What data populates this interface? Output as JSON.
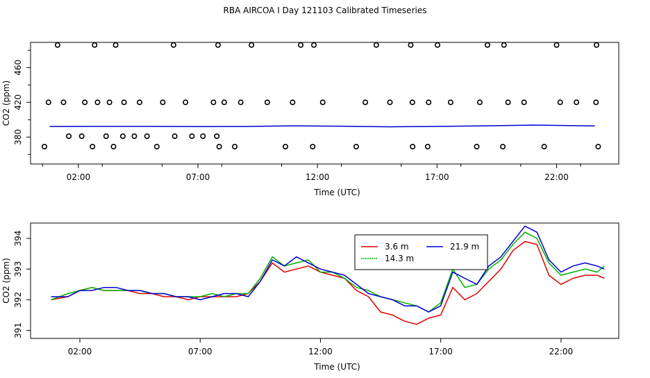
{
  "title": "RBA AIRCOA I  Day 121103  Calibrated Timeseries",
  "colors": {
    "red": "#e00000",
    "green": "#00b000",
    "blue": "#0000d0",
    "axis": "#000000"
  },
  "chart_data": [
    {
      "type": "scatter",
      "xlabel": "Time (UTC)",
      "ylabel": "CO2 (ppm)",
      "xlim": [
        0.0,
        24.6
      ],
      "ylim": [
        349,
        489
      ],
      "xticks": [
        "02:00",
        "07:00",
        "12:00",
        "17:00",
        "22:00"
      ],
      "xtick_values": [
        2,
        7,
        12,
        17,
        22
      ],
      "yticks": [
        "380",
        "420",
        "460"
      ],
      "ytick_values": [
        380,
        420,
        460
      ],
      "series": [
        {
          "marker": "open-circle",
          "color": "#000000",
          "x": [
            1.6,
            2.14,
            3.16,
            3.86,
            4.34,
            4.87,
            6.03,
            6.75,
            7.21,
            7.79,
            0.75,
            1.38,
            2.27,
            2.8,
            3.3,
            3.91,
            4.56,
            5.53,
            6.48,
            7.65,
            8.1,
            8.79,
            9.9,
            10.96,
            12.22,
            14.0,
            15.03,
            15.97,
            16.65,
            17.57,
            18.79,
            19.97,
            20.64,
            22.15,
            22.83,
            23.65,
            1.13,
            2.68,
            3.56,
            5.98,
            7.84,
            9.24,
            11.3,
            11.85,
            14.46,
            15.9,
            17.02,
            19.11,
            19.8,
            22.0,
            23.67,
            0.58,
            2.59,
            3.47,
            5.28,
            7.89,
            8.54,
            10.66,
            11.8,
            13.62,
            15.98,
            16.61,
            18.66,
            19.75,
            21.48,
            23.74
          ],
          "y": [
            381,
            381,
            381,
            381,
            381,
            381,
            381,
            381,
            381,
            381,
            420,
            420,
            420,
            420,
            420,
            420,
            420,
            420,
            420,
            420,
            420,
            420,
            420,
            420,
            420,
            420,
            420,
            420,
            420,
            420,
            420,
            420,
            420,
            420,
            420,
            420,
            486,
            486,
            486,
            486,
            486,
            486,
            486,
            486,
            486,
            486,
            486,
            486,
            486,
            486,
            486,
            369,
            369,
            369,
            369,
            369,
            369,
            369,
            369,
            369,
            369,
            369,
            369,
            369,
            369,
            369
          ]
        },
        {
          "name": "",
          "marker": "line",
          "color": "#0000d0",
          "x": [
            0.8,
            3,
            5,
            7,
            9,
            11,
            13,
            15,
            17,
            19,
            21,
            23.6
          ],
          "y": [
            392.2,
            392.3,
            392.3,
            392.1,
            392.2,
            392.9,
            392.5,
            391.8,
            392.3,
            392.9,
            393.8,
            392.8
          ]
        }
      ]
    },
    {
      "type": "line",
      "xlabel": "Time (UTC)",
      "ylabel": "CO2 (ppm)",
      "xlim": [
        -0.05,
        24.4
      ],
      "ylim": [
        390.74,
        394.5
      ],
      "xticks": [
        "02:00",
        "07:00",
        "12:00",
        "17:00",
        "22:00"
      ],
      "xtick_values": [
        2,
        7,
        12,
        17,
        22
      ],
      "yticks": [
        "391",
        "392",
        "393",
        "394"
      ],
      "ytick_values": [
        391,
        392,
        393,
        394
      ],
      "legend": {
        "placement": "top-center",
        "entries": [
          "3.6 m",
          "21.9 m",
          "14.3 m"
        ]
      },
      "x": [
        0.8,
        1.5,
        2.0,
        2.5,
        3.0,
        3.5,
        4.0,
        4.5,
        5.0,
        5.5,
        6.0,
        6.5,
        7.0,
        7.5,
        8.0,
        8.5,
        9.0,
        9.5,
        10.0,
        10.5,
        11.0,
        11.5,
        12.0,
        12.5,
        13.0,
        13.5,
        14.0,
        14.5,
        15.0,
        15.5,
        16.0,
        16.5,
        17.0,
        17.5,
        18.0,
        18.5,
        19.0,
        19.5,
        20.0,
        20.5,
        21.0,
        21.5,
        22.0,
        22.5,
        23.0,
        23.5,
        23.8
      ],
      "series": [
        {
          "name": "3.6 m",
          "color": "#e00000",
          "y": [
            392.0,
            392.1,
            392.3,
            392.4,
            392.3,
            392.3,
            392.3,
            392.2,
            392.2,
            392.1,
            392.1,
            392.0,
            392.1,
            392.1,
            392.1,
            392.1,
            392.2,
            392.6,
            393.2,
            392.9,
            393.0,
            393.1,
            392.9,
            392.8,
            392.7,
            392.3,
            392.1,
            391.6,
            391.5,
            391.3,
            391.2,
            391.4,
            391.5,
            392.4,
            392.0,
            392.2,
            392.6,
            393.0,
            393.6,
            393.9,
            393.8,
            392.8,
            392.5,
            392.7,
            392.8,
            392.8,
            392.7
          ]
        },
        {
          "name": "21.9 m",
          "color": "#0000d0",
          "y": [
            392.1,
            392.1,
            392.3,
            392.3,
            392.4,
            392.4,
            392.3,
            392.3,
            392.2,
            392.2,
            392.1,
            392.1,
            392.0,
            392.1,
            392.2,
            392.2,
            392.1,
            392.6,
            393.3,
            393.1,
            393.4,
            393.2,
            393.0,
            392.9,
            392.8,
            392.5,
            392.2,
            392.1,
            392.0,
            391.8,
            391.8,
            391.6,
            391.8,
            392.9,
            392.7,
            392.5,
            393.1,
            393.4,
            393.9,
            394.4,
            394.2,
            393.3,
            392.9,
            393.1,
            393.2,
            393.1,
            393.0
          ]
        },
        {
          "name": "14.3 m",
          "color": "#00b000",
          "y": [
            392.0,
            392.2,
            392.3,
            392.4,
            392.3,
            392.3,
            392.3,
            392.3,
            392.2,
            392.2,
            392.1,
            392.1,
            392.1,
            392.2,
            392.1,
            392.2,
            392.2,
            392.7,
            393.4,
            393.1,
            393.2,
            393.3,
            392.9,
            392.9,
            392.7,
            392.4,
            392.3,
            392.1,
            392.0,
            391.9,
            391.8,
            391.6,
            391.9,
            393.0,
            392.4,
            392.5,
            393.0,
            393.3,
            393.8,
            394.2,
            394.0,
            393.2,
            392.8,
            392.9,
            393.0,
            392.9,
            393.1
          ]
        }
      ]
    }
  ]
}
